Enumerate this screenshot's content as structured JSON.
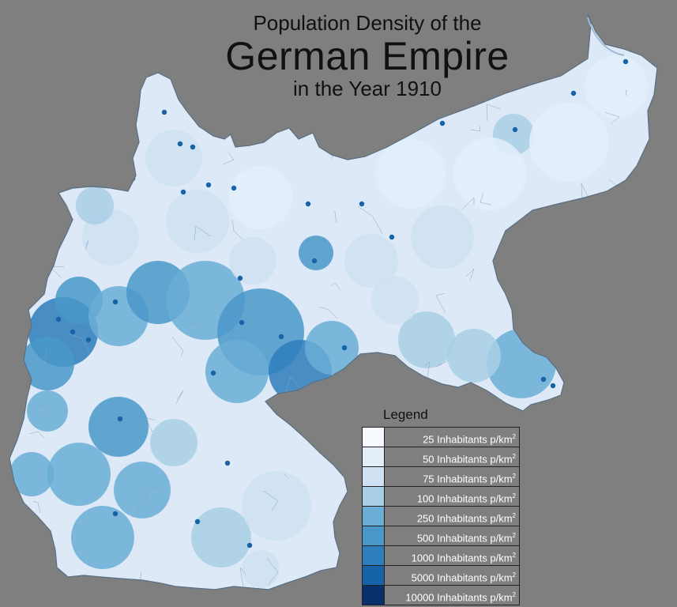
{
  "title": {
    "line1": "Population Density of the",
    "line2": "German Empire",
    "line3": "in the Year 1910"
  },
  "legend": {
    "title": "Legend",
    "unit": "Inhabitants p/km",
    "unit_superscript": "2",
    "classes": [
      {
        "value": "25",
        "color": "#f7fbff"
      },
      {
        "value": "50",
        "color": "#e3eef9"
      },
      {
        "value": "75",
        "color": "#cfe1f2"
      },
      {
        "value": "100",
        "color": "#a9cfe5"
      },
      {
        "value": "250",
        "color": "#6aaed6"
      },
      {
        "value": "500",
        "color": "#4a98c9"
      },
      {
        "value": "1000",
        "color": "#2e7ebc"
      },
      {
        "value": "5000",
        "color": "#1663aa"
      },
      {
        "value": "10000",
        "color": "#08306b"
      }
    ]
  },
  "colors": {
    "background": "#7f7f7f",
    "outline": "#6e8aa3",
    "title_text": "#111111"
  }
}
